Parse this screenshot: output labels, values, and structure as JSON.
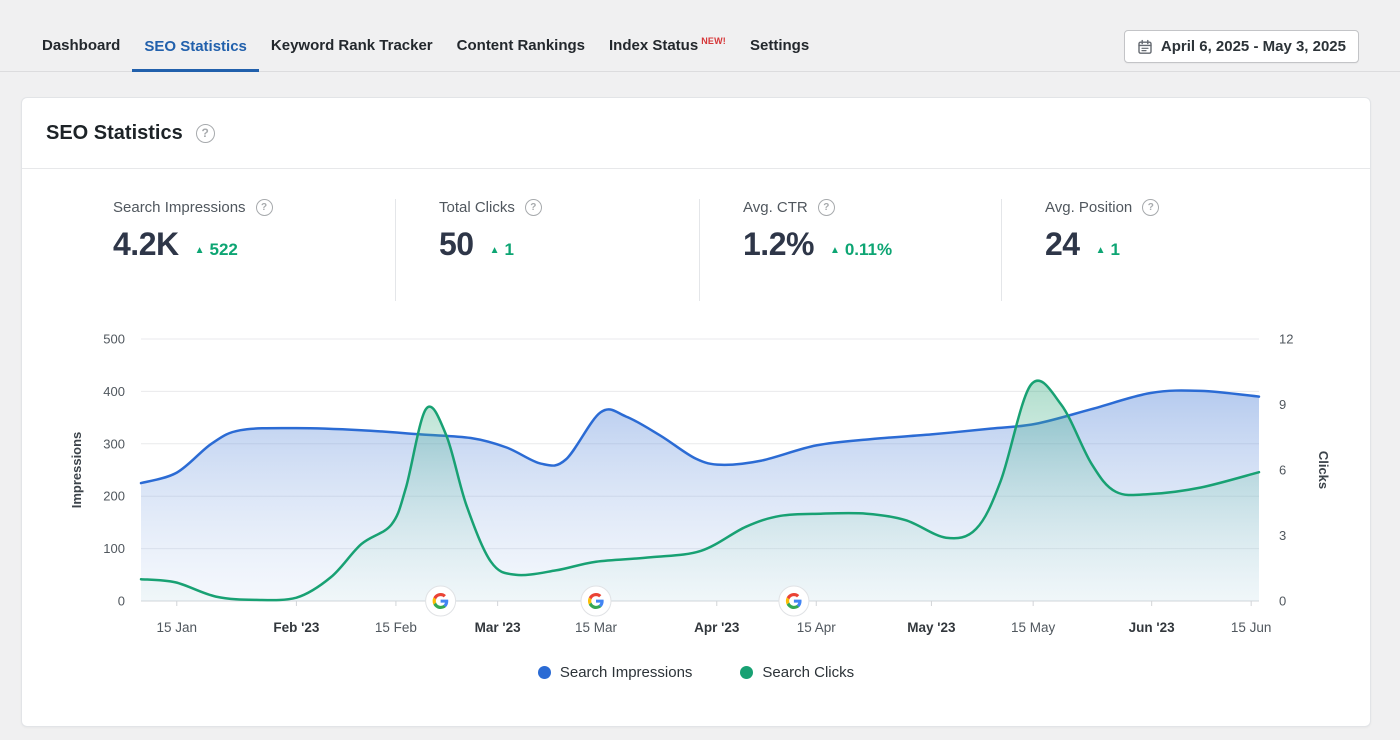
{
  "tabs": {
    "items": [
      {
        "label": "Dashboard"
      },
      {
        "label": "SEO Statistics",
        "active": true
      },
      {
        "label": "Keyword Rank Tracker"
      },
      {
        "label": "Content Rankings"
      },
      {
        "label": "Index Status",
        "badge": "NEW!"
      },
      {
        "label": "Settings"
      }
    ]
  },
  "date_range": {
    "label": "April 6, 2025 - May 3, 2025"
  },
  "panel": {
    "title": "SEO Statistics"
  },
  "stats": [
    {
      "label": "Search Impressions",
      "value": "4.2K",
      "change": "522",
      "direction": "up"
    },
    {
      "label": "Total Clicks",
      "value": "50",
      "change": "1",
      "direction": "up"
    },
    {
      "label": "Avg. CTR",
      "value": "1.2%",
      "change": "0.11%",
      "direction": "up"
    },
    {
      "label": "Avg. Position",
      "value": "24",
      "change": "1",
      "direction": "up"
    }
  ],
  "colors": {
    "accent_blue": "#2160ac",
    "positive_green": "#0da573",
    "new_badge_red": "#d63638",
    "impressions_blue": "#2b6bd4",
    "clicks_green": "#18a173"
  },
  "chart_data": {
    "type": "area",
    "grid": true,
    "legend_position": "bottom",
    "left_axis": {
      "title": "Impressions",
      "ticks": [
        0,
        100,
        200,
        300,
        400,
        500
      ],
      "max": 500
    },
    "right_axis": {
      "title": "Clicks",
      "ticks": [
        0,
        3,
        6,
        9,
        12
      ],
      "max": 12
    },
    "x_labels": [
      {
        "text": "15 Jan",
        "bold": false,
        "f": 0.032
      },
      {
        "text": "Feb '23",
        "bold": true,
        "f": 0.139
      },
      {
        "text": "15 Feb",
        "bold": false,
        "f": 0.228
      },
      {
        "text": "Mar '23",
        "bold": true,
        "f": 0.319
      },
      {
        "text": "15 Mar",
        "bold": false,
        "f": 0.407
      },
      {
        "text": "Apr '23",
        "bold": true,
        "f": 0.515
      },
      {
        "text": "15 Apr",
        "bold": false,
        "f": 0.604
      },
      {
        "text": "May '23",
        "bold": true,
        "f": 0.707
      },
      {
        "text": "15 May",
        "bold": false,
        "f": 0.798
      },
      {
        "text": "Jun '23",
        "bold": true,
        "f": 0.904
      },
      {
        "text": "15 Jun",
        "bold": false,
        "f": 0.993
      }
    ],
    "series": [
      {
        "name": "Search Impressions",
        "axis": "left",
        "color": "#2b6bd4",
        "fill_top": "rgba(80,130,215,0.42)",
        "fill_bottom": "rgba(190,210,240,0.16)",
        "points": [
          [
            0,
            225
          ],
          [
            0.032,
            245
          ],
          [
            0.063,
            300
          ],
          [
            0.089,
            326
          ],
          [
            0.139,
            330
          ],
          [
            0.197,
            326
          ],
          [
            0.25,
            318
          ],
          [
            0.295,
            311
          ],
          [
            0.327,
            293
          ],
          [
            0.358,
            262
          ],
          [
            0.38,
            270
          ],
          [
            0.411,
            360
          ],
          [
            0.434,
            352
          ],
          [
            0.465,
            315
          ],
          [
            0.496,
            272
          ],
          [
            0.519,
            260
          ],
          [
            0.555,
            268
          ],
          [
            0.604,
            297
          ],
          [
            0.653,
            309
          ],
          [
            0.707,
            318
          ],
          [
            0.76,
            329
          ],
          [
            0.8,
            338
          ],
          [
            0.85,
            366
          ],
          [
            0.903,
            397
          ],
          [
            0.948,
            401
          ],
          [
            1,
            390
          ]
        ]
      },
      {
        "name": "Search Clicks",
        "axis": "right",
        "color": "#18a173",
        "fill_top": "rgba(30,160,112,0.35)",
        "fill_bottom": "rgba(200,235,220,0.10)",
        "points": [
          [
            0,
            1.0
          ],
          [
            0.031,
            0.85
          ],
          [
            0.067,
            0.2
          ],
          [
            0.103,
            0.05
          ],
          [
            0.139,
            0.15
          ],
          [
            0.17,
            1.1
          ],
          [
            0.197,
            2.6
          ],
          [
            0.224,
            3.5
          ],
          [
            0.237,
            5.2
          ],
          [
            0.255,
            8.8
          ],
          [
            0.273,
            7.6
          ],
          [
            0.291,
            4.4
          ],
          [
            0.313,
            1.8
          ],
          [
            0.335,
            1.2
          ],
          [
            0.371,
            1.4
          ],
          [
            0.407,
            1.8
          ],
          [
            0.456,
            2.0
          ],
          [
            0.501,
            2.3
          ],
          [
            0.541,
            3.4
          ],
          [
            0.572,
            3.9
          ],
          [
            0.608,
            4.0
          ],
          [
            0.649,
            4.0
          ],
          [
            0.684,
            3.7
          ],
          [
            0.72,
            2.9
          ],
          [
            0.747,
            3.3
          ],
          [
            0.769,
            5.5
          ],
          [
            0.796,
            9.9
          ],
          [
            0.823,
            9.0
          ],
          [
            0.85,
            6.3
          ],
          [
            0.872,
            5.0
          ],
          [
            0.903,
            4.9
          ],
          [
            0.948,
            5.2
          ],
          [
            1,
            5.9
          ]
        ]
      }
    ],
    "google_update_markers": [
      0.268,
      0.407,
      0.584
    ]
  }
}
